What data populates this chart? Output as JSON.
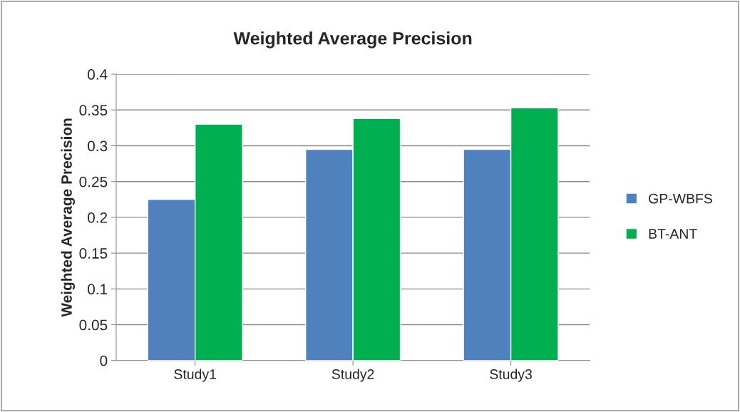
{
  "chart_data": {
    "type": "bar",
    "title": "Weighted Average Precision",
    "ylabel": "Weighted Average Precision",
    "categories": [
      "Study1",
      "Study2",
      "Study3"
    ],
    "series": [
      {
        "name": "GP-WBFS",
        "color": "#4f81bd",
        "values": [
          0.225,
          0.295,
          0.295
        ]
      },
      {
        "name": "BT-ANT",
        "color": "#00b050",
        "values": [
          0.33,
          0.338,
          0.353
        ]
      }
    ],
    "ylim": [
      0,
      0.4
    ],
    "yticks": [
      {
        "value": 0,
        "label": "0"
      },
      0.05,
      0.1,
      0.15,
      0.2,
      0.25,
      0.3,
      0.35,
      0.4
    ],
    "grid": "y",
    "legend": "right"
  }
}
